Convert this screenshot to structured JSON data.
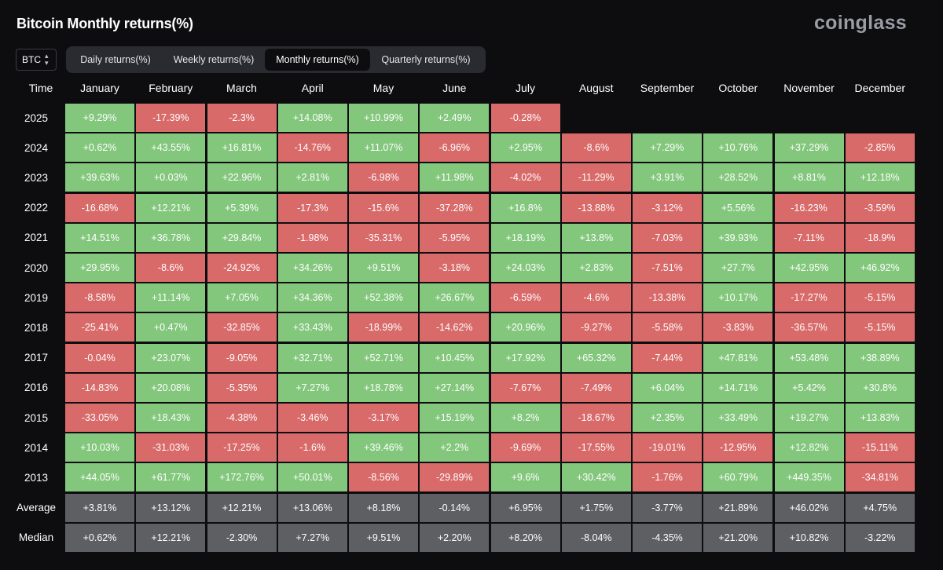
{
  "header": {
    "title": "Bitcoin Monthly returns(%)",
    "logo": "coinglass"
  },
  "coin_select": {
    "value": "BTC",
    "icon": "chevron-updown-icon"
  },
  "tabs": [
    {
      "label": "Daily returns(%)",
      "active": false
    },
    {
      "label": "Weekly returns(%)",
      "active": false
    },
    {
      "label": "Monthly returns(%)",
      "active": true
    },
    {
      "label": "Quarterly returns(%)",
      "active": false
    }
  ],
  "colors": {
    "positive": "#83c77d",
    "negative": "#d96a6a",
    "summary": "#5e5f63",
    "background": "#0d0d10"
  },
  "chart_data": {
    "type": "heatmap",
    "corner_label": "Time",
    "columns": [
      "January",
      "February",
      "March",
      "April",
      "May",
      "June",
      "July",
      "August",
      "September",
      "October",
      "November",
      "December"
    ],
    "rows": [
      {
        "label": "2025",
        "values": [
          "+9.29%",
          "-17.39%",
          "-2.3%",
          "+14.08%",
          "+10.99%",
          "+2.49%",
          "-0.28%"
        ]
      },
      {
        "label": "2024",
        "values": [
          "+0.62%",
          "+43.55%",
          "+16.81%",
          "-14.76%",
          "+11.07%",
          "-6.96%",
          "+2.95%",
          "-8.6%",
          "+7.29%",
          "+10.76%",
          "+37.29%",
          "-2.85%"
        ]
      },
      {
        "label": "2023",
        "values": [
          "+39.63%",
          "+0.03%",
          "+22.96%",
          "+2.81%",
          "-6.98%",
          "+11.98%",
          "-4.02%",
          "-11.29%",
          "+3.91%",
          "+28.52%",
          "+8.81%",
          "+12.18%"
        ]
      },
      {
        "label": "2022",
        "values": [
          "-16.68%",
          "+12.21%",
          "+5.39%",
          "-17.3%",
          "-15.6%",
          "-37.28%",
          "+16.8%",
          "-13.88%",
          "-3.12%",
          "+5.56%",
          "-16.23%",
          "-3.59%"
        ]
      },
      {
        "label": "2021",
        "values": [
          "+14.51%",
          "+36.78%",
          "+29.84%",
          "-1.98%",
          "-35.31%",
          "-5.95%",
          "+18.19%",
          "+13.8%",
          "-7.03%",
          "+39.93%",
          "-7.11%",
          "-18.9%"
        ]
      },
      {
        "label": "2020",
        "values": [
          "+29.95%",
          "-8.6%",
          "-24.92%",
          "+34.26%",
          "+9.51%",
          "-3.18%",
          "+24.03%",
          "+2.83%",
          "-7.51%",
          "+27.7%",
          "+42.95%",
          "+46.92%"
        ]
      },
      {
        "label": "2019",
        "values": [
          "-8.58%",
          "+11.14%",
          "+7.05%",
          "+34.36%",
          "+52.38%",
          "+26.67%",
          "-6.59%",
          "-4.6%",
          "-13.38%",
          "+10.17%",
          "-17.27%",
          "-5.15%"
        ]
      },
      {
        "label": "2018",
        "values": [
          "-25.41%",
          "+0.47%",
          "-32.85%",
          "+33.43%",
          "-18.99%",
          "-14.62%",
          "+20.96%",
          "-9.27%",
          "-5.58%",
          "-3.83%",
          "-36.57%",
          "-5.15%"
        ]
      },
      {
        "label": "2017",
        "values": [
          "-0.04%",
          "+23.07%",
          "-9.05%",
          "+32.71%",
          "+52.71%",
          "+10.45%",
          "+17.92%",
          "+65.32%",
          "-7.44%",
          "+47.81%",
          "+53.48%",
          "+38.89%"
        ]
      },
      {
        "label": "2016",
        "values": [
          "-14.83%",
          "+20.08%",
          "-5.35%",
          "+7.27%",
          "+18.78%",
          "+27.14%",
          "-7.67%",
          "-7.49%",
          "+6.04%",
          "+14.71%",
          "+5.42%",
          "+30.8%"
        ]
      },
      {
        "label": "2015",
        "values": [
          "-33.05%",
          "+18.43%",
          "-4.38%",
          "-3.46%",
          "-3.17%",
          "+15.19%",
          "+8.2%",
          "-18.67%",
          "+2.35%",
          "+33.49%",
          "+19.27%",
          "+13.83%"
        ]
      },
      {
        "label": "2014",
        "values": [
          "+10.03%",
          "-31.03%",
          "-17.25%",
          "-1.6%",
          "+39.46%",
          "+2.2%",
          "-9.69%",
          "-17.55%",
          "-19.01%",
          "-12.95%",
          "+12.82%",
          "-15.11%"
        ]
      },
      {
        "label": "2013",
        "values": [
          "+44.05%",
          "+61.77%",
          "+172.76%",
          "+50.01%",
          "-8.56%",
          "-29.89%",
          "+9.6%",
          "+30.42%",
          "-1.76%",
          "+60.79%",
          "+449.35%",
          "-34.81%"
        ]
      }
    ],
    "summary_rows": [
      {
        "label": "Average",
        "values": [
          "+3.81%",
          "+13.12%",
          "+12.21%",
          "+13.06%",
          "+8.18%",
          "-0.14%",
          "+6.95%",
          "+1.75%",
          "-3.77%",
          "+21.89%",
          "+46.02%",
          "+4.75%"
        ]
      },
      {
        "label": "Median",
        "values": [
          "+0.62%",
          "+12.21%",
          "-2.30%",
          "+7.27%",
          "+9.51%",
          "+2.20%",
          "+8.20%",
          "-8.04%",
          "-4.35%",
          "+21.20%",
          "+10.82%",
          "-3.22%"
        ]
      }
    ]
  }
}
